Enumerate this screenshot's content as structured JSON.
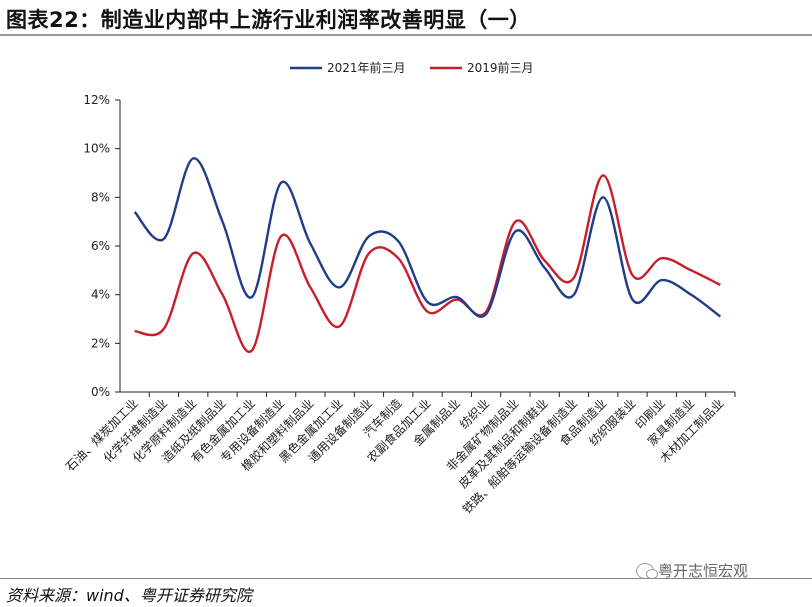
{
  "header": {
    "title": "图表22：制造业内部中上游行业利润率改善明显（一）"
  },
  "footer": {
    "source": "资料来源：wind、粤开证券研究院",
    "watermark": "粤开志恒宏观"
  },
  "chart_data": {
    "type": "line",
    "title": "",
    "xlabel": "",
    "ylabel": "",
    "ylim": [
      0,
      12
    ],
    "yticks": [
      "0%",
      "2%",
      "4%",
      "6%",
      "8%",
      "10%",
      "12%"
    ],
    "grid": false,
    "legend_position": "top-center",
    "categories": [
      "石油、煤炭加工业",
      "化学纤维制造业",
      "化学原料制造业",
      "造纸及纸制品业",
      "有色金属加工业",
      "专用设备制造业",
      "橡胶和塑料制品业",
      "黑色金属加工业",
      "通用设备制造业",
      "汽车制造",
      "农副食品加工业",
      "金属制品业",
      "纺织业",
      "非金属矿物制品业",
      "皮革及其制品和制鞋业",
      "铁路、船舶等运输设备制造业",
      "食品制造业",
      "纺织服装业",
      "印刷业",
      "家具制造业",
      "木材加工制品业"
    ],
    "series": [
      {
        "name": "2021年前三月",
        "color": "#1f3d8a",
        "values": [
          7.4,
          6.3,
          9.6,
          7.0,
          3.9,
          8.6,
          6.1,
          4.3,
          6.4,
          6.2,
          3.7,
          3.9,
          3.2,
          6.6,
          5.1,
          4.0,
          8.0,
          3.8,
          4.6,
          4.0,
          3.1
        ]
      },
      {
        "name": "2019前三月",
        "color": "#c81e2b",
        "values": [
          2.5,
          2.6,
          5.7,
          4.0,
          1.7,
          6.4,
          4.3,
          2.7,
          5.7,
          5.5,
          3.3,
          3.8,
          3.3,
          7.0,
          5.4,
          4.7,
          8.9,
          4.8,
          5.5,
          5.0,
          4.4
        ]
      }
    ]
  }
}
